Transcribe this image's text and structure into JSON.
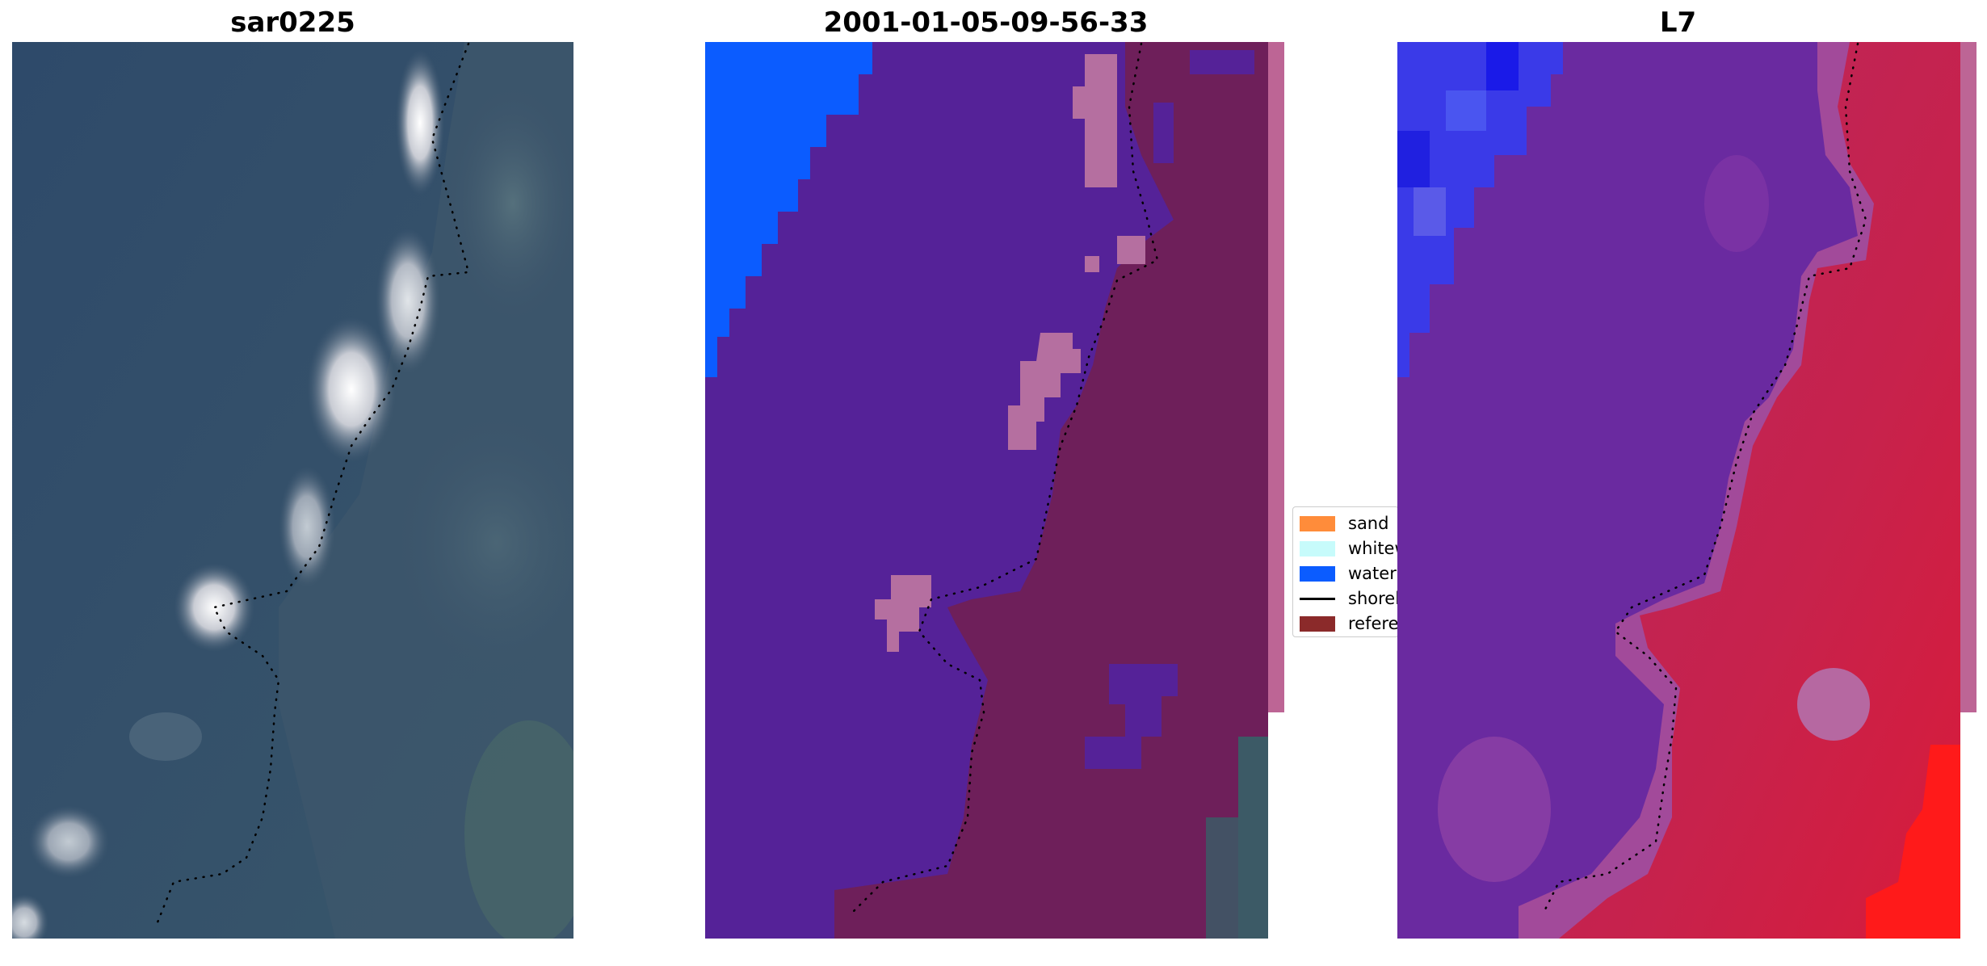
{
  "panels": [
    {
      "title": "sar0225"
    },
    {
      "title": "2001-01-05-09-56-33"
    },
    {
      "title": "L7"
    }
  ],
  "legend": {
    "items": [
      {
        "label": "sand",
        "color": "#ff8c3a",
        "kind": "patch"
      },
      {
        "label": "whitewater",
        "color": "#c7fbfb",
        "kind": "patch"
      },
      {
        "label": "water",
        "color": "#0b5cff",
        "kind": "patch"
      },
      {
        "label": "shoreline",
        "color": "#000000",
        "kind": "line"
      },
      {
        "label": "reference",
        "color": "#8b2a2a",
        "kind": "patch"
      }
    ]
  },
  "colors": {
    "water_class": "#0b5cff",
    "land_overlay": "#6e1f5a",
    "sea_overlay": "#552298",
    "whitewater_overlay": "#b56fa0",
    "rgb_sea": "#2c4566",
    "rgb_surf": "#e8e8ee",
    "nir_land": "#c0264e",
    "nir_sea": "#6a2aa0",
    "nir_water": "#3a3ae8",
    "shoreline_dots": "#000000"
  }
}
